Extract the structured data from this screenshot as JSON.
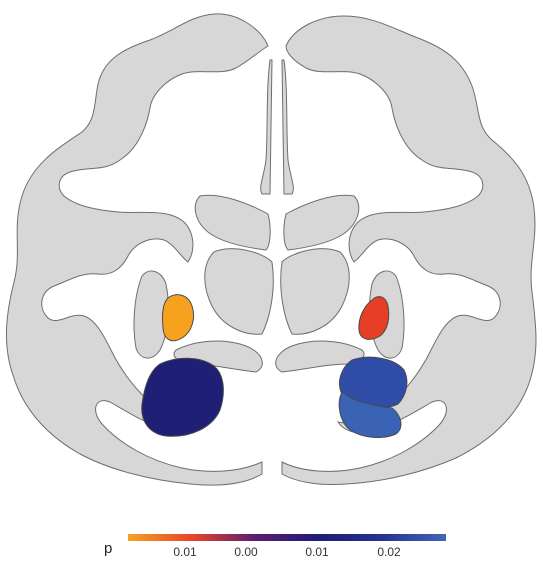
{
  "legend": {
    "title": "p",
    "ticks": [
      "0.01",
      "0.00",
      "0.01",
      "0.02"
    ],
    "gradient_stops": [
      "#f4a224",
      "#e8452a",
      "#5a1e6e",
      "#1f1c74",
      "#26338f",
      "#4166b8"
    ]
  },
  "regions": [
    {
      "name": "left-nucleus",
      "color": "#f6a21f"
    },
    {
      "name": "right-nucleus",
      "color": "#e63e27"
    },
    {
      "name": "left-lower-structure",
      "color": "#1f1f75"
    },
    {
      "name": "right-lower-structure-upper",
      "color": "#2f4da6"
    },
    {
      "name": "right-lower-structure-lower",
      "color": "#3a63b5"
    }
  ],
  "background_color": "#d7d7d7"
}
